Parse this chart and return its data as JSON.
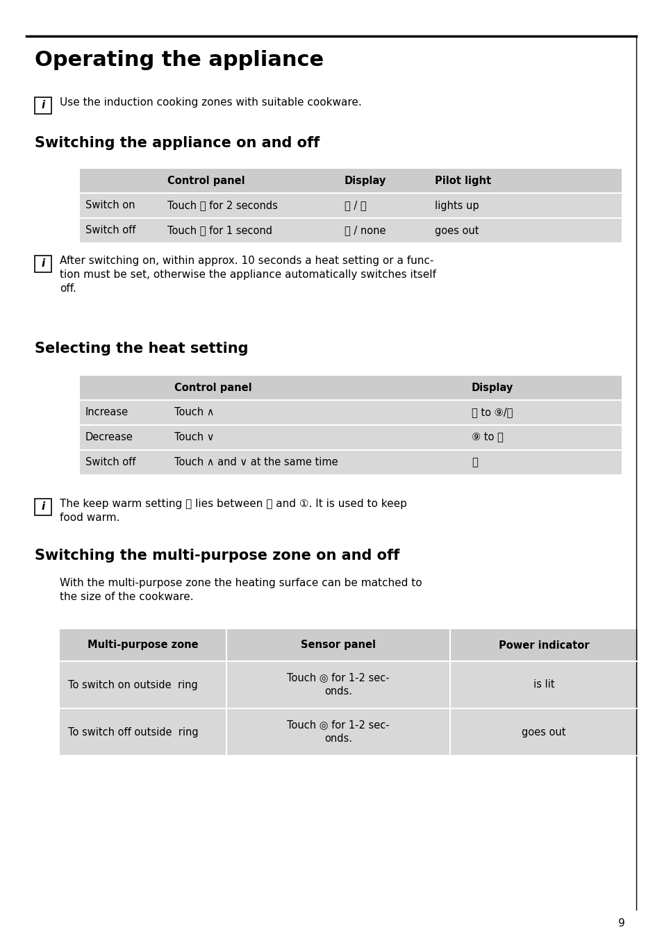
{
  "page_bg": "#ffffff",
  "title": "Operating the appliance",
  "section1_title": "Switching the appliance on and off",
  "section2_title": "Selecting the heat setting",
  "section3_title": "Switching the multi-purpose zone on and off",
  "info1_text": "Use the induction cooking zones with suitable cookware.",
  "section3_intro_line1": "With the multi-purpose zone the heating surface can be matched to",
  "section3_intro_line2": "the size of the cookware.",
  "table1_header": [
    "",
    "Control panel",
    "Display",
    "Pilot light"
  ],
  "table2_header": [
    "",
    "Control panel",
    "Display"
  ],
  "table3_header": [
    "Multi-purpose zone",
    "Sensor panel",
    "Power indicator"
  ],
  "table_bg_header": "#cccccc",
  "table_bg_row": "#d8d8d8",
  "page_number": "9"
}
